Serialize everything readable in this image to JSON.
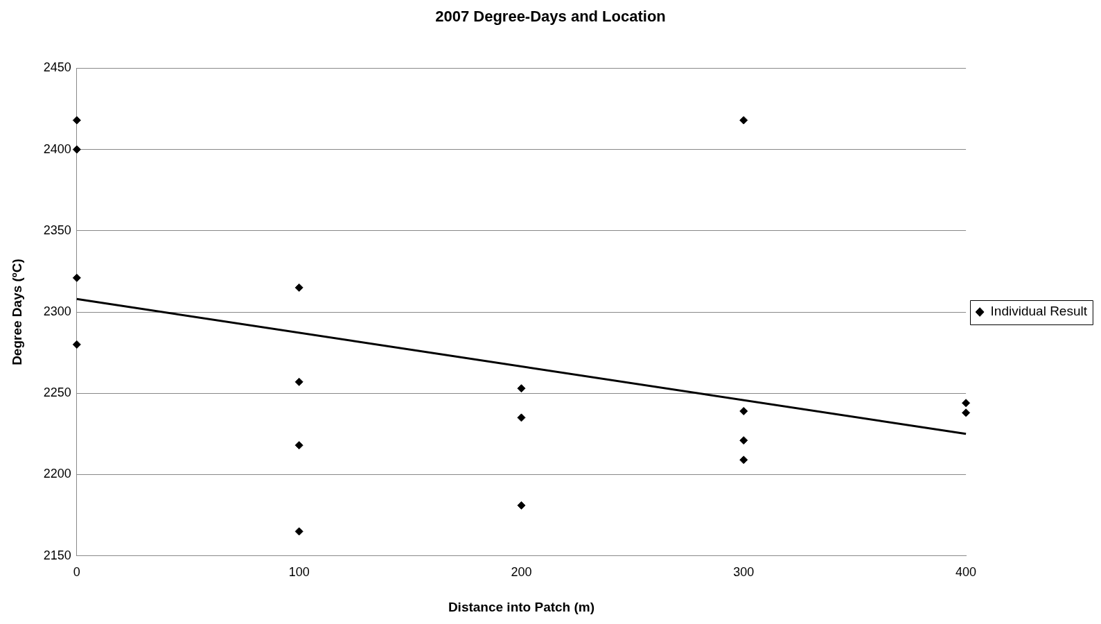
{
  "chart_data": {
    "type": "scatter",
    "title": "2007 Degree-Days and Location",
    "xlabel": "Distance into Patch (m)",
    "ylabel": "Degree Days (ºC)",
    "xlim": [
      0,
      400
    ],
    "xticks": [
      0,
      100,
      200,
      300,
      400
    ],
    "ylim": [
      2150,
      2450
    ],
    "yticks": [
      2150,
      2200,
      2250,
      2300,
      2350,
      2400,
      2450
    ],
    "grid": "y",
    "legend": "right",
    "marker": "diamond",
    "series": [
      {
        "name": "Individual Result",
        "type": "scatter",
        "color": "#000000",
        "x": [
          0,
          0,
          0,
          0,
          100,
          100,
          100,
          100,
          200,
          200,
          200,
          300,
          300,
          300,
          300,
          400,
          400
        ],
        "values": [
          2418,
          2400,
          2321,
          2280,
          2315,
          2257,
          2218,
          2165,
          2253,
          2235,
          2181,
          2418,
          2239,
          2221,
          2209,
          2244,
          2238
        ]
      },
      {
        "type": "line",
        "marker": "none",
        "color": "#000000",
        "x": [
          0,
          400
        ],
        "values": [
          2308,
          2225
        ]
      }
    ]
  }
}
